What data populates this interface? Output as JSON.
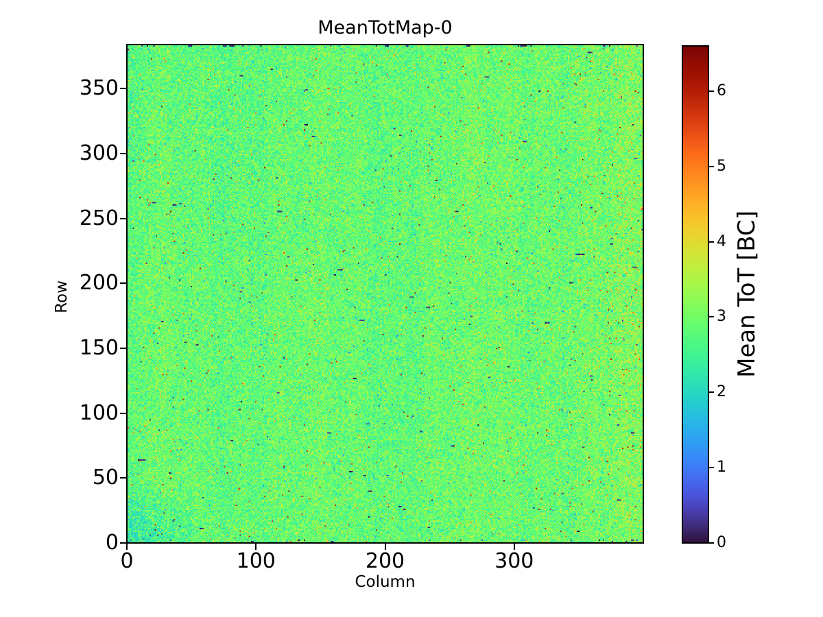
{
  "figure": {
    "background_color": "#ffffff"
  },
  "chart_data": {
    "type": "heatmap",
    "title": "MeanTotMap-0",
    "xlabel": "Column",
    "ylabel": "Row",
    "x_range": [
      0,
      400
    ],
    "y_range": [
      0,
      384
    ],
    "x_ticks": [
      "0",
      "100",
      "200",
      "300"
    ],
    "y_ticks": [
      "0",
      "50",
      "100",
      "150",
      "200",
      "250",
      "300",
      "350"
    ],
    "grid_on": false,
    "grid_size": {
      "columns": 400,
      "rows": 384
    },
    "colormap": "turbo",
    "colorbar": {
      "label": "Mean ToT [BC]",
      "vmin": 0,
      "vmax": 6.6,
      "ticks": [
        "0",
        "1",
        "2",
        "3",
        "4",
        "5",
        "6"
      ],
      "position": "right"
    },
    "value_distribution": {
      "description": "Noisy per-pixel mean Time-over-Threshold map (400 columns x 384 rows), mostly green ~2.5-3.3 BC with cyan and yellow speckle and sparse hot/dead pixels",
      "main_mode": {
        "mean_bc": 2.92,
        "sigma_bc": 0.27,
        "fraction": 0.71
      },
      "cyan_speckle": {
        "mean_bc": 2.42,
        "sigma_bc": 0.16,
        "fraction": 0.2
      },
      "yellow_speckle": {
        "mean_bc": 3.6,
        "sigma_bc": 0.2,
        "fraction": 0.09
      },
      "hot_pixels": {
        "fraction": 0.005,
        "range_bc": [
          4.3,
          6.4
        ]
      },
      "cold_pixels": {
        "fraction": 0.003,
        "range_bc": [
          0.9,
          2.0
        ]
      },
      "dead_pixels": {
        "fraction": 0.0013,
        "range_bc": [
          0.0,
          0.5
        ]
      },
      "regional_trends": {
        "bottom_left_corner": "lower ToT (~2.4 BC) patch, roughly columns 0-55 and rows 0-45",
        "top_left_quadrant": "slightly lower values with denser cyan speckle",
        "left_edge_band": "narrow cooler band in first ~14 columns",
        "right_side": "gradually higher ToT with more orange/red hot pixels",
        "top_and_bottom_rows": "scattered dark dead pixels along row 0 and row 383",
        "columns": "faint vertical banding"
      }
    }
  }
}
